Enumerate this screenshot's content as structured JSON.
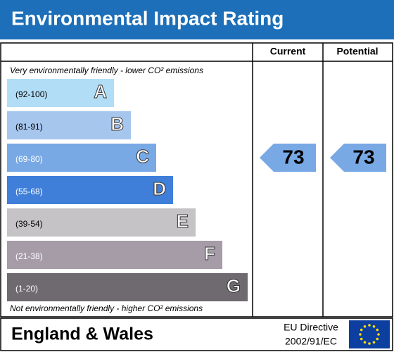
{
  "title": "Environmental Impact Rating",
  "columns": [
    "Current",
    "Potential"
  ],
  "top_note": "Very environmentally friendly - lower CO² emissions",
  "bottom_note": "Not environmentally friendly - higher CO² emissions",
  "bands": [
    {
      "range": "(92-100)",
      "letter": "A",
      "color": "#b1ddf7"
    },
    {
      "range": "(81-91)",
      "letter": "B",
      "color": "#a6c6ee"
    },
    {
      "range": "(69-80)",
      "letter": "C",
      "color": "#78a9e5"
    },
    {
      "range": "(55-68)",
      "letter": "D",
      "color": "#3f7fd9"
    },
    {
      "range": "(39-54)",
      "letter": "E",
      "color": "#c6c3c6"
    },
    {
      "range": "(21-38)",
      "letter": "F",
      "color": "#a59ca8"
    },
    {
      "range": "(1-20)",
      "letter": "G",
      "color": "#6e6a6f"
    }
  ],
  "current": 73,
  "potential": 73,
  "footer": {
    "region": "England & Wales",
    "directive_line1": "EU Directive",
    "directive_line2": "2002/91/EC"
  }
}
